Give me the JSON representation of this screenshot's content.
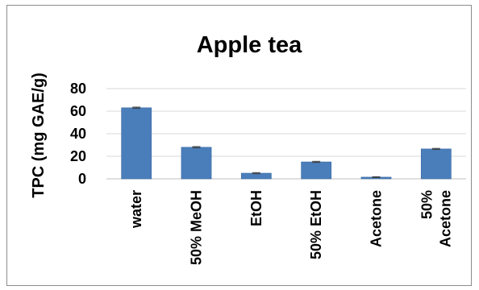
{
  "chart_data": {
    "type": "bar",
    "title": "Apple tea",
    "ylabel": "TPC (mg GAE/g)",
    "xlabel": "",
    "categories": [
      [
        "water"
      ],
      [
        "50% MeOH"
      ],
      [
        "EtOH"
      ],
      [
        "50% EtOH"
      ],
      [
        "Acetone"
      ],
      [
        "50%",
        "Acetone"
      ]
    ],
    "values": [
      63,
      28,
      5,
      15,
      1.5,
      26.5
    ],
    "error": [
      0.6,
      0.6,
      0.5,
      0.5,
      0.4,
      0.5
    ],
    "ylim": [
      0,
      80
    ],
    "yticks": [
      0,
      20,
      40,
      60,
      80
    ],
    "grid": true,
    "legend": "none",
    "colors": {
      "bar": "#4a7ebb",
      "bar_edge": "#3a69a3",
      "grid": "#d9d9d9",
      "error": "#404040"
    }
  }
}
